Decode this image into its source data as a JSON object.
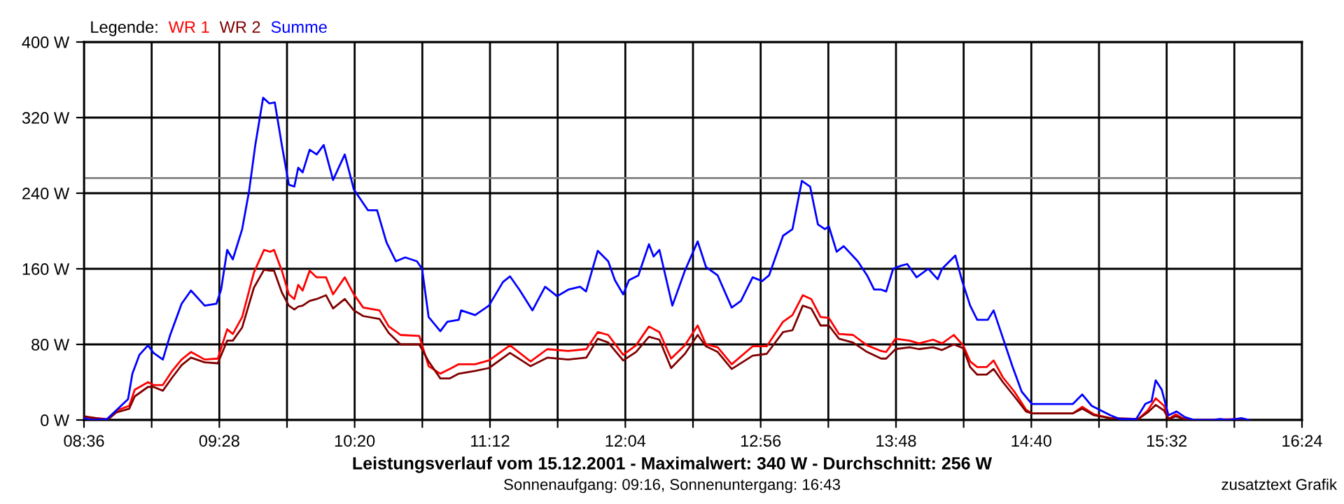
{
  "chart_data": {
    "type": "line",
    "title": "Leistungsverlauf vom 15.12.2001 - Maximalwert: 340 W - Durchschnitt: 256 W",
    "subtitle": "Sonnenaufgang: 09:16, Sonnenuntergang: 16:43",
    "legend_title": "Legende:",
    "annotations": [
      "zusatztext Grafik"
    ],
    "series": [
      {
        "name": "WR 1",
        "color": "#ff0000",
        "x": [
          8.6,
          8.75,
          8.807,
          8.89,
          8.925,
          9.01,
          9.045,
          9.105,
          9.165,
          9.225,
          9.285,
          9.373,
          9.457,
          9.517,
          9.553,
          9.613,
          9.688,
          9.753,
          9.792,
          9.817,
          9.867,
          9.912,
          9.947,
          9.972,
          10.0,
          10.045,
          10.09,
          10.15,
          10.195,
          10.27,
          10.328,
          10.388,
          10.492,
          10.552,
          10.627,
          10.747,
          10.807,
          10.882,
          10.943,
          11.0,
          11.105,
          11.193,
          11.328,
          11.46,
          11.567,
          11.7,
          11.817,
          11.89,
          11.957,
          12.053,
          12.135,
          12.218,
          12.285,
          12.36,
          12.448,
          12.53,
          12.583,
          12.658,
          12.748,
          12.882,
          12.972,
          13.077,
          13.137,
          13.203,
          13.257,
          13.317,
          13.37,
          13.435,
          13.525,
          13.615,
          13.705,
          13.737,
          13.797,
          13.887,
          13.947,
          14.037,
          14.095,
          14.17,
          14.23,
          14.275,
          14.32,
          14.38,
          14.425,
          14.485,
          14.558,
          14.633,
          14.67,
          14.933,
          14.993,
          15.068,
          15.173,
          15.352,
          15.412,
          15.463,
          15.517,
          15.545,
          15.592,
          15.645,
          15.71,
          16.005,
          16.06
        ],
        "values": [
          3,
          1,
          10,
          15,
          32,
          40,
          37,
          37,
          52,
          64,
          72,
          64,
          65,
          96,
          91,
          109,
          156,
          180,
          178,
          180,
          158,
          133,
          128,
          143,
          137,
          158,
          151,
          151,
          133,
          151,
          133,
          119,
          116,
          99,
          90,
          89,
          57,
          49,
          54,
          59,
          59,
          63,
          79,
          62,
          75,
          73,
          75,
          93,
          90,
          69,
          79,
          99,
          93,
          65,
          79,
          100,
          80,
          77,
          59,
          78,
          78,
          104,
          111,
          132,
          128,
          109,
          108,
          91,
          90,
          79,
          73,
          72,
          86,
          84,
          81,
          85,
          81,
          90,
          79,
          62,
          56,
          56,
          63,
          45,
          30,
          11,
          7,
          7,
          14,
          6,
          2,
          1,
          10,
          23,
          15,
          1,
          6,
          1,
          0,
          1,
          0
        ]
      },
      {
        "name": "WR 2",
        "color": "#800000",
        "x": [
          8.6,
          8.75,
          8.807,
          8.89,
          8.925,
          9.01,
          9.045,
          9.105,
          9.165,
          9.225,
          9.285,
          9.373,
          9.457,
          9.517,
          9.553,
          9.613,
          9.688,
          9.753,
          9.792,
          9.817,
          9.867,
          9.912,
          9.947,
          9.972,
          10.0,
          10.045,
          10.09,
          10.15,
          10.195,
          10.27,
          10.328,
          10.388,
          10.492,
          10.552,
          10.627,
          10.747,
          10.807,
          10.882,
          10.943,
          11.0,
          11.105,
          11.193,
          11.328,
          11.46,
          11.567,
          11.7,
          11.817,
          11.89,
          11.957,
          12.053,
          12.135,
          12.218,
          12.285,
          12.36,
          12.448,
          12.53,
          12.583,
          12.658,
          12.748,
          12.882,
          12.972,
          13.077,
          13.137,
          13.203,
          13.257,
          13.317,
          13.37,
          13.435,
          13.525,
          13.615,
          13.705,
          13.737,
          13.797,
          13.887,
          13.947,
          14.037,
          14.095,
          14.17,
          14.23,
          14.275,
          14.32,
          14.38,
          14.425,
          14.485,
          14.558,
          14.633,
          14.67,
          14.933,
          14.993,
          15.068,
          15.173,
          15.352,
          15.412,
          15.463,
          15.517,
          15.545,
          15.592,
          15.645,
          15.71,
          16.005,
          16.06
        ],
        "values": [
          4,
          0,
          8,
          12,
          25,
          35,
          35,
          31,
          45,
          58,
          66,
          61,
          60,
          84,
          84,
          98,
          140,
          159,
          158,
          158,
          135,
          121,
          117,
          120,
          121,
          126,
          128,
          132,
          118,
          128,
          116,
          110,
          107,
          92,
          80,
          80,
          62,
          44,
          44,
          49,
          52,
          55,
          71,
          57,
          66,
          64,
          66,
          86,
          82,
          63,
          72,
          88,
          85,
          55,
          70,
          90,
          78,
          72,
          54,
          68,
          70,
          93,
          95,
          121,
          118,
          100,
          100,
          86,
          82,
          72,
          65,
          65,
          75,
          77,
          75,
          77,
          74,
          80,
          76,
          56,
          48,
          48,
          54,
          40,
          25,
          9,
          7,
          7,
          12,
          5,
          2,
          1,
          8,
          16,
          10,
          1,
          4,
          1,
          0,
          0,
          0
        ]
      },
      {
        "name": "Summe",
        "color": "#0000ff",
        "x": [
          8.6,
          8.657,
          8.747,
          8.837,
          8.882,
          8.91,
          8.955,
          9.01,
          9.045,
          9.105,
          9.15,
          9.225,
          9.285,
          9.373,
          9.448,
          9.478,
          9.517,
          9.553,
          9.613,
          9.657,
          9.697,
          9.747,
          9.787,
          9.822,
          9.867,
          9.912,
          9.947,
          9.972,
          10.0,
          10.045,
          10.09,
          10.135,
          10.195,
          10.27,
          10.328,
          10.418,
          10.477,
          10.537,
          10.597,
          10.657,
          10.732,
          10.765,
          10.807,
          10.882,
          10.927,
          11.0,
          11.015,
          11.105,
          11.193,
          11.283,
          11.328,
          11.388,
          11.472,
          11.553,
          11.63,
          11.702,
          11.777,
          11.815,
          11.89,
          11.957,
          12.0,
          12.053,
          12.09,
          12.15,
          12.218,
          12.248,
          12.285,
          12.368,
          12.448,
          12.53,
          12.583,
          12.658,
          12.748,
          12.807,
          12.882,
          12.942,
          12.987,
          13.077,
          13.137,
          13.197,
          13.25,
          13.3,
          13.345,
          13.37,
          13.42,
          13.465,
          13.555,
          13.615,
          13.66,
          13.705,
          13.737,
          13.782,
          13.827,
          13.872,
          13.932,
          14.007,
          14.067,
          14.095,
          14.18,
          14.222,
          14.275,
          14.32,
          14.388,
          14.425,
          14.47,
          14.545,
          14.605,
          14.67,
          14.813,
          14.933,
          14.993,
          15.053,
          15.173,
          15.233,
          15.338,
          15.397,
          15.437,
          15.463,
          15.502,
          15.545,
          15.597,
          15.65,
          15.71,
          15.83,
          15.875,
          15.92,
          15.975,
          16.012,
          16.06
        ],
        "values": [
          2,
          0,
          1,
          15,
          22,
          49,
          69,
          79,
          71,
          64,
          89,
          123,
          137,
          121,
          123,
          138,
          180,
          170,
          202,
          242,
          291,
          341,
          335,
          336,
          291,
          249,
          247,
          267,
          262,
          286,
          281,
          291,
          254,
          281,
          244,
          222,
          222,
          188,
          168,
          172,
          168,
          160,
          109,
          94,
          104,
          106,
          116,
          111,
          121,
          146,
          152,
          138,
          116,
          141,
          131,
          138,
          141,
          136,
          179,
          168,
          148,
          133,
          148,
          153,
          186,
          173,
          180,
          121,
          158,
          189,
          162,
          153,
          119,
          126,
          151,
          147,
          153,
          195,
          202,
          253,
          247,
          207,
          202,
          205,
          178,
          184,
          168,
          153,
          138,
          138,
          136,
          160,
          163,
          165,
          151,
          160,
          149,
          160,
          174,
          148,
          121,
          106,
          106,
          116,
          94,
          57,
          30,
          17,
          17,
          17,
          27,
          15,
          5,
          1,
          1,
          17,
          20,
          42,
          32,
          5,
          9,
          3,
          0,
          0,
          1,
          0,
          1,
          2,
          0
        ]
      }
    ],
    "xlim": [
      8.6,
      16.4
    ],
    "xticks": [
      {
        "value": 8.6,
        "label": "08:36"
      },
      {
        "value": 9.0333,
        "label": null
      },
      {
        "value": 9.4667,
        "label": "09:28"
      },
      {
        "value": 9.9,
        "label": null
      },
      {
        "value": 10.3333,
        "label": "10:20"
      },
      {
        "value": 10.7667,
        "label": null
      },
      {
        "value": 11.2,
        "label": "11:12"
      },
      {
        "value": 11.6333,
        "label": null
      },
      {
        "value": 12.0667,
        "label": "12:04"
      },
      {
        "value": 12.5,
        "label": null
      },
      {
        "value": 12.9333,
        "label": "12:56"
      },
      {
        "value": 13.3667,
        "label": null
      },
      {
        "value": 13.8,
        "label": "13:48"
      },
      {
        "value": 14.2333,
        "label": null
      },
      {
        "value": 14.6667,
        "label": "14:40"
      },
      {
        "value": 15.1,
        "label": null
      },
      {
        "value": 15.5333,
        "label": "15:32"
      },
      {
        "value": 15.9667,
        "label": null
      },
      {
        "value": 16.4,
        "label": "16:24"
      }
    ],
    "ylim": [
      0,
      400
    ],
    "yticks": [
      {
        "value": 0,
        "label": "0 W"
      },
      {
        "value": 80,
        "label": "80 W"
      },
      {
        "value": 160,
        "label": "160 W"
      },
      {
        "value": 240,
        "label": "240 W"
      },
      {
        "value": 320,
        "label": "320 W"
      },
      {
        "value": 400,
        "label": "400 W"
      }
    ],
    "ref_lines": [
      {
        "axis": "y",
        "value": 256,
        "color": "#808080"
      }
    ],
    "grid": true,
    "legend": "top left",
    "marker": "none",
    "line_style": "solid"
  }
}
